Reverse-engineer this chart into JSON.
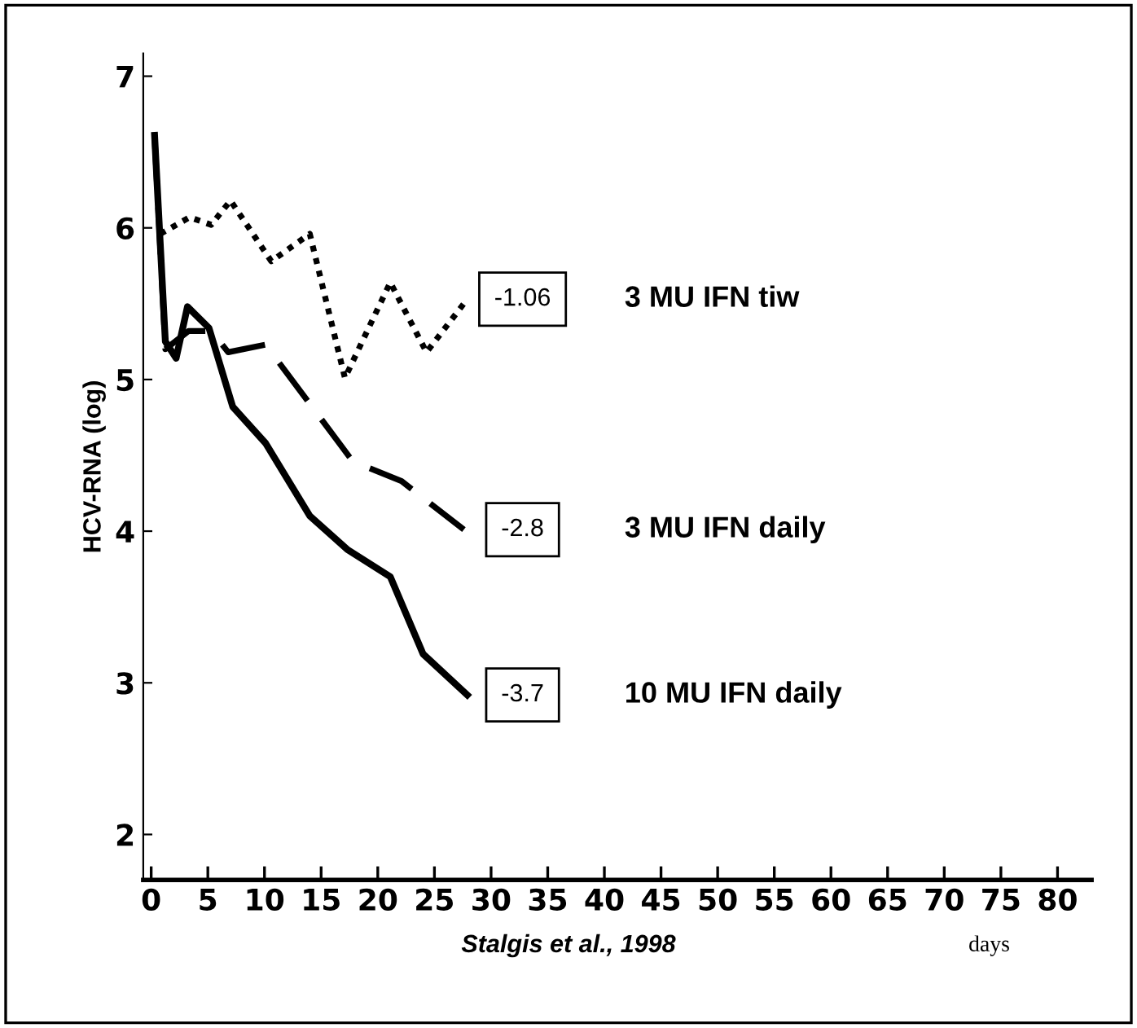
{
  "chart_data": {
    "type": "line",
    "ylabel": "HCV-RNA (log)",
    "xlabel": "days",
    "xlim": [
      -0.7,
      83
    ],
    "xticks": [
      0,
      5,
      10,
      15,
      20,
      25,
      30,
      35,
      40,
      45,
      50,
      55,
      60,
      65,
      70,
      75,
      80
    ],
    "ylim": [
      1.7,
      7.15
    ],
    "yticks": [
      2,
      3,
      4,
      5,
      6,
      7
    ],
    "grid": false,
    "legend": "right",
    "marker": "none",
    "series": [
      {
        "name": "3 MU IFN tiw",
        "color": "#000000",
        "line_style": "dotted",
        "x": [
          0.8,
          3.4,
          5.3,
          7,
          10.6,
          14,
          17.1,
          21.1,
          24.3,
          27.9
        ],
        "values": [
          5.96,
          6.07,
          6.02,
          6.18,
          5.78,
          5.96,
          5.01,
          5.64,
          5.18,
          5.53
        ]
      },
      {
        "name": "3 MU IFN daily",
        "color": "#000000",
        "line_style": "dashed",
        "x": [
          0.3,
          1.25,
          3.3,
          5.3,
          6.8,
          10.1,
          16.4,
          17.8,
          22.1,
          27.6
        ],
        "values": [
          6.6,
          5.2,
          5.32,
          5.32,
          5.18,
          5.23,
          4.6,
          4.46,
          4.33,
          4.01
        ]
      },
      {
        "name": "10 MU IFN daily",
        "color": "#000000",
        "line_style": "solid",
        "x": [
          0.3,
          1.25,
          2.2,
          3.2,
          5.1,
          7.2,
          10.1,
          14,
          17.3,
          21.1,
          24,
          27.9
        ],
        "values": [
          6.61,
          5.25,
          5.14,
          5.48,
          5.34,
          4.82,
          4.58,
          4.1,
          3.88,
          3.7,
          3.19,
          2.92
        ]
      }
    ],
    "annotations": [
      "-1.06",
      "-2.8",
      "-3.7",
      "Stalgis et al., 1998"
    ]
  }
}
